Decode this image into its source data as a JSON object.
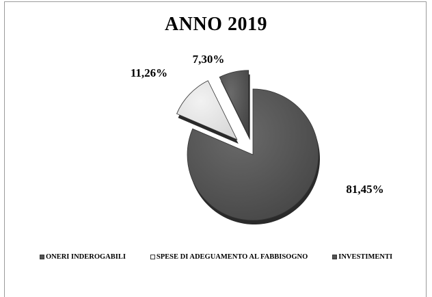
{
  "chart_data": {
    "type": "pie",
    "title": "ANNO 2019",
    "categories": [
      "ONERI INDEROGABILI",
      "SPESE DI ADEGUAMENTO AL FABBISOGNO",
      "INVESTIMENTI"
    ],
    "values": [
      81.45,
      11.26,
      7.3
    ],
    "value_labels": [
      "81,45%",
      "11,26%",
      "7,30%"
    ],
    "colors": [
      "#555555",
      "#e6e6e6",
      "#555555"
    ],
    "exploded": [
      false,
      true,
      true
    ],
    "legend_position": "bottom"
  }
}
